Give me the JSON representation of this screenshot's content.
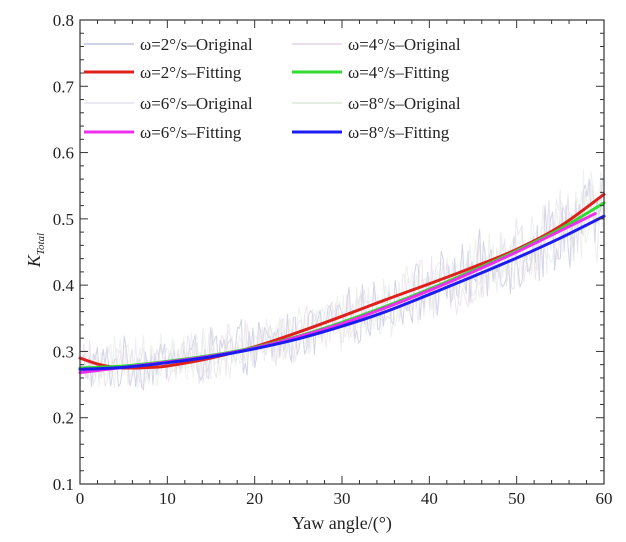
{
  "chart_data": {
    "type": "line",
    "title": "",
    "xlabel": "Yaw angle/(°)",
    "ylabel_main": "K",
    "ylabel_sub": "Total",
    "xlim": [
      0,
      60
    ],
    "ylim": [
      0.1,
      0.8
    ],
    "xticks": [
      0,
      10,
      20,
      30,
      40,
      50,
      60
    ],
    "yticks": [
      0.1,
      0.2,
      0.3,
      0.4,
      0.5,
      0.6,
      0.7,
      0.8
    ],
    "xtick_labels": [
      "0",
      "10",
      "20",
      "30",
      "40",
      "50",
      "60"
    ],
    "ytick_labels": [
      "0.1",
      "0.2",
      "0.3",
      "0.4",
      "0.5",
      "0.6",
      "0.7",
      "0.8"
    ],
    "grid": false,
    "legend_position": "top-left",
    "noise": {
      "x_start": 0,
      "x_end": 60,
      "step": 0.22,
      "base": {
        "x": [
          0,
          5,
          10,
          20,
          30,
          40,
          50,
          55,
          60
        ],
        "y": [
          0.275,
          0.28,
          0.285,
          0.305,
          0.345,
          0.395,
          0.445,
          0.48,
          0.515
        ]
      },
      "amplitude": {
        "x": [
          0,
          30,
          45,
          60
        ],
        "y": [
          0.045,
          0.05,
          0.06,
          0.08
        ]
      }
    },
    "series": [
      {
        "name": "ω=2°/s–Original",
        "kind": "original",
        "color": "#bfc2dd",
        "opacity": 0.7
      },
      {
        "name": "ω=4°/s–Original",
        "kind": "original",
        "color": "#e6d3e3",
        "opacity": 0.6
      },
      {
        "name": "ω=2°/s–Fitting",
        "kind": "fitting",
        "color": "#e0201a",
        "x": [
          0,
          2,
          4,
          6,
          8,
          10,
          15,
          20,
          25,
          30,
          35,
          40,
          45,
          50,
          55,
          60
        ],
        "y": [
          0.29,
          0.281,
          0.276,
          0.275,
          0.276,
          0.278,
          0.29,
          0.307,
          0.329,
          0.353,
          0.378,
          0.402,
          0.427,
          0.454,
          0.489,
          0.537
        ]
      },
      {
        "name": "ω=4°/s–Fitting",
        "kind": "fitting",
        "color": "#2fdc2f",
        "x": [
          0,
          5,
          10,
          15,
          20,
          25,
          30,
          35,
          40,
          45,
          50,
          55,
          60
        ],
        "y": [
          0.275,
          0.278,
          0.285,
          0.294,
          0.306,
          0.323,
          0.344,
          0.368,
          0.394,
          0.422,
          0.452,
          0.485,
          0.524
        ]
      },
      {
        "name": "ω=6°/s–Original",
        "kind": "original",
        "color": "#e3e3ef",
        "opacity": 0.6
      },
      {
        "name": "ω=8°/s–Original",
        "kind": "original",
        "color": "#dbe6db",
        "opacity": 0.5
      },
      {
        "name": "ω=6°/s–Fitting",
        "kind": "fitting",
        "color": "#ee30ee",
        "x": [
          0,
          5,
          10,
          15,
          20,
          25,
          30,
          35,
          40,
          45,
          50,
          55,
          59
        ],
        "y": [
          0.268,
          0.276,
          0.284,
          0.293,
          0.305,
          0.322,
          0.342,
          0.366,
          0.392,
          0.42,
          0.45,
          0.482,
          0.508
        ]
      },
      {
        "name": "ω=8°/s–Fitting",
        "kind": "fitting",
        "color": "#1c1cf0",
        "x": [
          0,
          5,
          10,
          15,
          20,
          25,
          30,
          35,
          40,
          45,
          50,
          55,
          60
        ],
        "y": [
          0.273,
          0.276,
          0.283,
          0.292,
          0.304,
          0.319,
          0.338,
          0.36,
          0.386,
          0.413,
          0.441,
          0.471,
          0.504
        ]
      }
    ]
  }
}
